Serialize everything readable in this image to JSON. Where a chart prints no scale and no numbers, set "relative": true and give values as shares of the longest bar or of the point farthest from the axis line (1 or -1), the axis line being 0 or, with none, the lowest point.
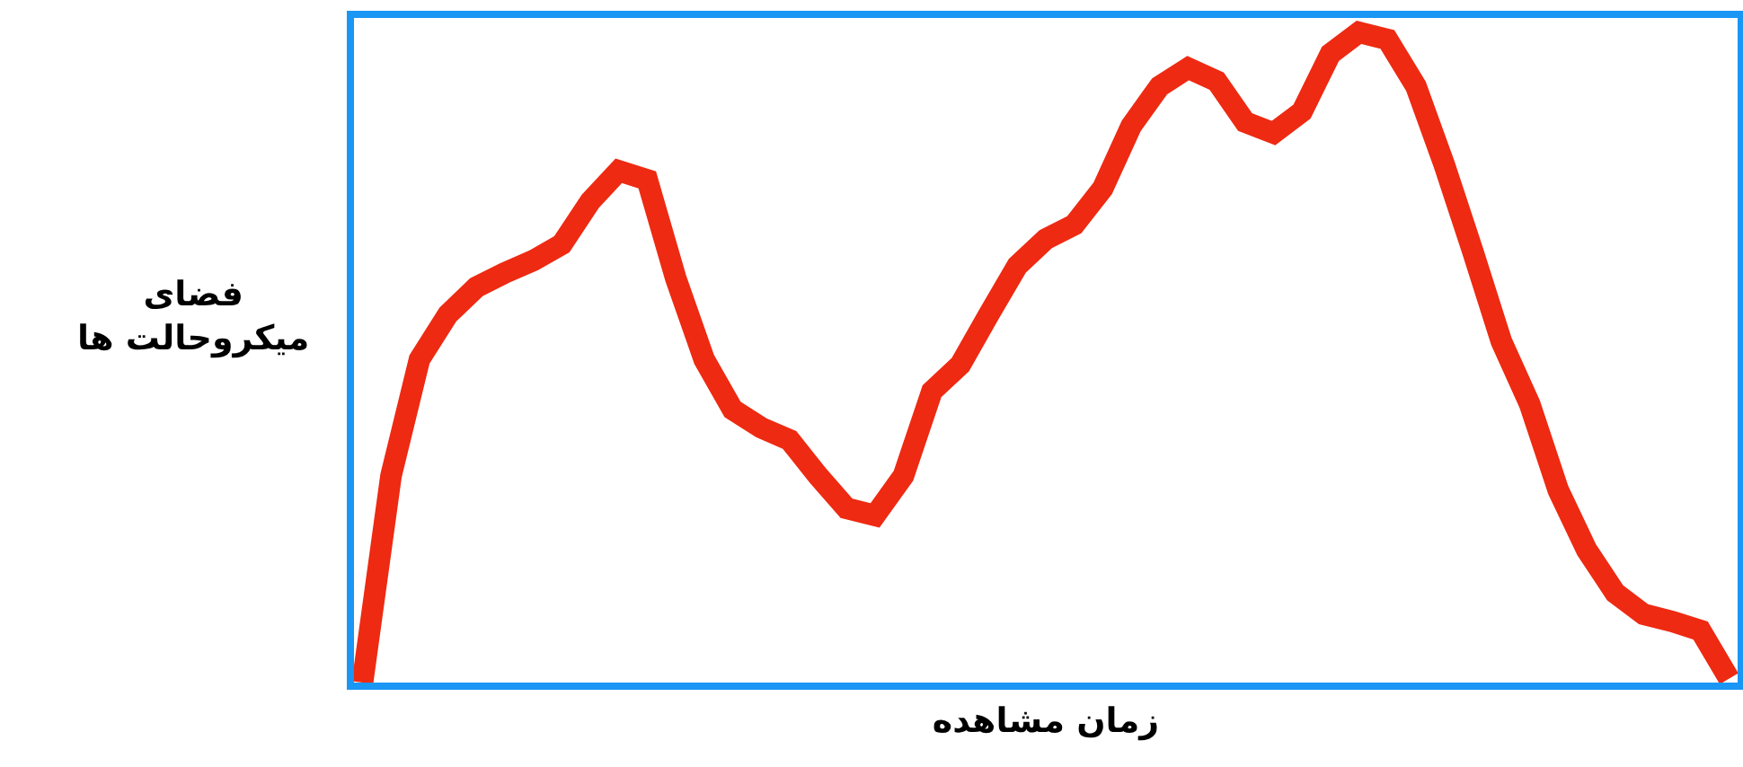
{
  "chart_data": {
    "type": "line",
    "relative": true,
    "xlabel": "زمان مشاهده",
    "ylabel": "فضای میکروحالت ها",
    "categories": [
      null,
      null,
      null,
      null,
      null,
      null,
      null,
      null,
      null,
      null,
      null,
      null,
      null,
      null,
      null,
      null,
      null,
      null,
      null,
      null,
      null,
      null,
      null,
      null,
      null,
      null,
      null,
      null,
      null,
      null,
      null,
      null,
      null,
      null,
      null,
      null,
      null,
      null,
      null,
      null,
      null,
      null,
      null,
      null,
      null,
      null,
      null,
      null,
      null
    ],
    "series": [
      {
        "color": "#ee2a12",
        "values": [
          0,
          0.318,
          0.497,
          0.566,
          0.608,
          0.63,
          0.649,
          0.674,
          0.74,
          0.787,
          0.773,
          0.622,
          0.497,
          0.42,
          0.392,
          0.373,
          0.318,
          0.268,
          0.257,
          0.318,
          0.448,
          0.489,
          0.566,
          0.641,
          0.682,
          0.704,
          0.76,
          0.856,
          0.917,
          0.945,
          0.925,
          0.862,
          0.845,
          0.878,
          0.967,
          1,
          0.989,
          0.917,
          0.796,
          0.663,
          0.525,
          0.428,
          0.296,
          0.204,
          0.138,
          0.105,
          0.094,
          0.08,
          0.006
        ]
      }
    ],
    "marker": "none",
    "line_style": "solid"
  }
}
